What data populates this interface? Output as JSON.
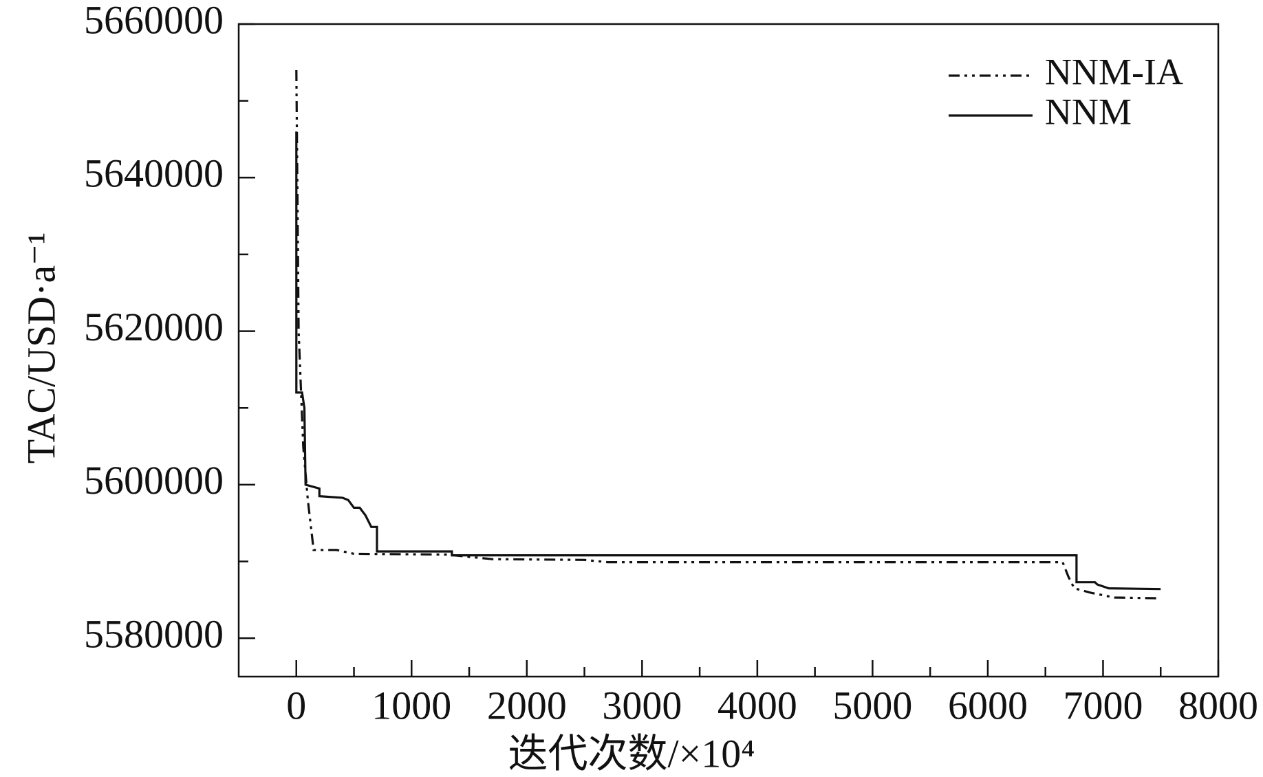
{
  "chart_data": {
    "type": "line",
    "xlabel": "迭代次数/×10⁴",
    "ylabel": "TAC/USD·a⁻¹",
    "xlim": [
      -500,
      8000
    ],
    "ylim": [
      5575000,
      5660000
    ],
    "xticks": [
      0,
      1000,
      2000,
      3000,
      4000,
      5000,
      6000,
      7000,
      8000
    ],
    "xticks_minor": [
      500,
      1500,
      2500,
      3500,
      4500,
      5500,
      6500,
      7500
    ],
    "yticks": [
      5580000,
      5600000,
      5620000,
      5640000,
      5660000
    ],
    "yticks_minor": [
      5590000,
      5610000,
      5630000,
      5650000
    ],
    "grid": false,
    "legend": "upper right",
    "series": [
      {
        "name": "NNM-IA",
        "color": "#111111",
        "dash": "dash-dot-dot",
        "x": [
          0,
          20,
          60,
          100,
          150,
          350,
          500,
          1300,
          1700,
          2500,
          2700,
          6650,
          6700,
          6750,
          6900,
          7100,
          7500
        ],
        "values": [
          5654000,
          5620000,
          5605000,
          5598000,
          5591500,
          5591500,
          5591000,
          5590900,
          5590300,
          5590200,
          5589900,
          5589900,
          5588000,
          5586500,
          5585900,
          5585300,
          5585200
        ]
      },
      {
        "name": "NNM",
        "color": "#111111",
        "dash": "solid",
        "x": [
          0,
          0,
          50,
          70,
          80,
          200,
          200,
          400,
          450,
          500,
          550,
          600,
          650,
          700,
          700,
          1350,
          1350,
          6770,
          6770,
          6930,
          6950,
          7050,
          7500
        ],
        "values": [
          5646000,
          5612000,
          5612000,
          5610000,
          5600000,
          5599500,
          5598500,
          5598300,
          5598000,
          5597000,
          5597000,
          5596000,
          5594500,
          5594500,
          5591300,
          5591300,
          5590800,
          5590800,
          5587300,
          5587300,
          5587000,
          5586500,
          5586400
        ]
      }
    ]
  }
}
